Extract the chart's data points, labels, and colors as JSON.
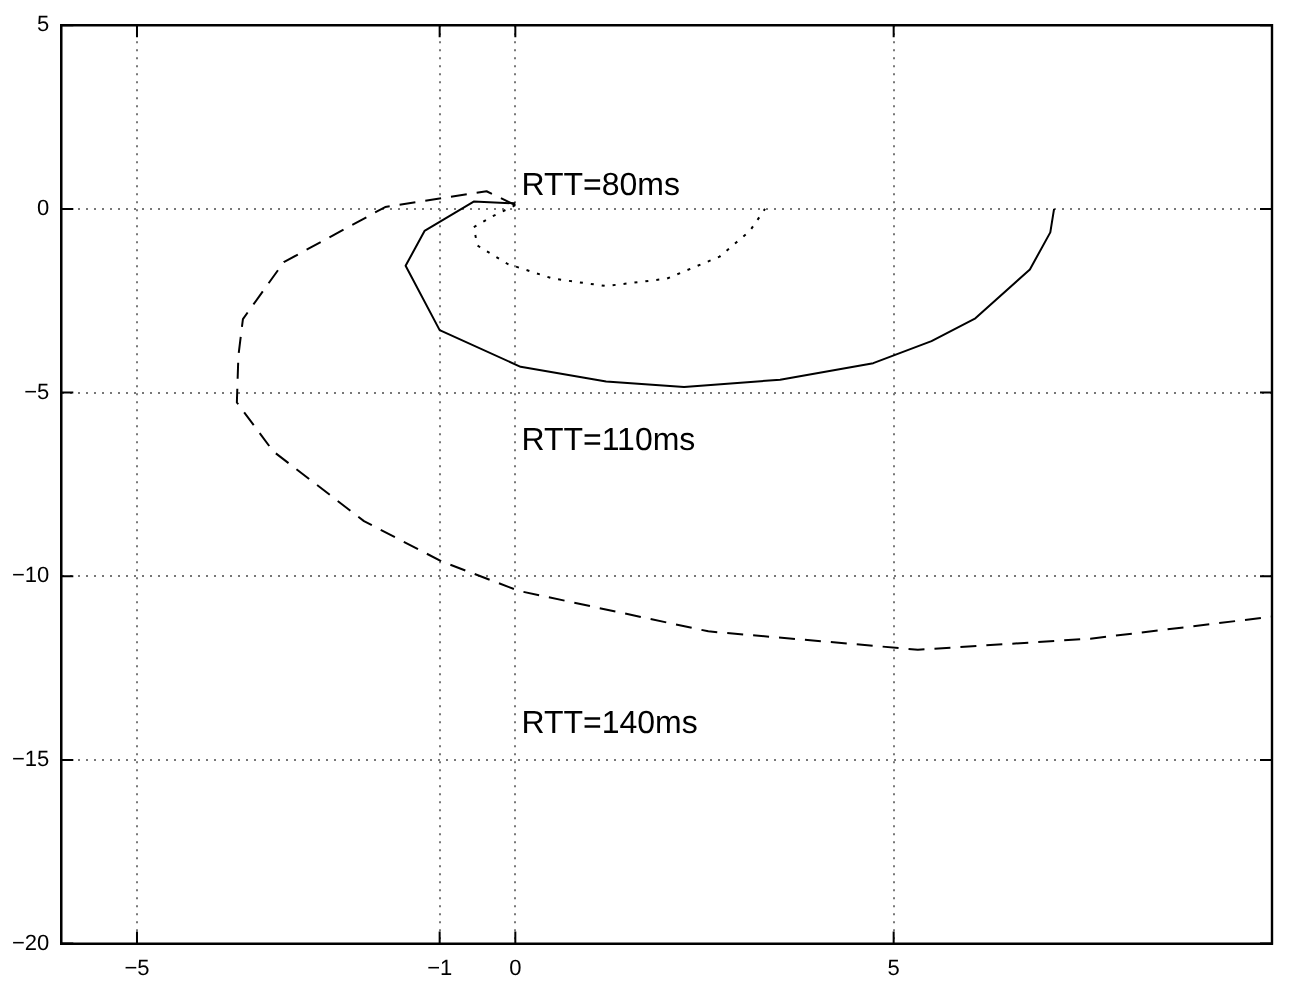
{
  "chart_data": {
    "type": "line",
    "xlim": [
      -6,
      10
    ],
    "xticks": [
      -5,
      -1,
      0,
      5
    ],
    "ylim": [
      -20,
      5
    ],
    "yticks": [
      -20,
      -15,
      -10,
      -5,
      0,
      5
    ],
    "grid": true,
    "marker": "none",
    "series": [
      {
        "name": "RTT=80ms",
        "color": "#000000",
        "line_style": "dotted",
        "x": [
          0,
          -0.3,
          -0.55,
          -0.5,
          -0.1,
          0.5,
          1.2,
          2,
          2.7,
          3.1,
          3.3
        ],
        "values": [
          0.1,
          -0.2,
          -0.5,
          -1.0,
          -1.5,
          -1.9,
          -2.1,
          -1.9,
          -1.3,
          -0.6,
          0
        ]
      },
      {
        "name": "RTT=110ms",
        "color": "#000000",
        "line_style": "solid",
        "x": [
          0,
          -0.55,
          -1.2,
          -1.45,
          -1,
          0.07,
          1.2,
          2.23,
          3.5,
          4.73,
          5.5,
          6.08,
          6.8,
          7.07,
          7.12
        ],
        "values": [
          0.15,
          0.2,
          -0.6,
          -1.55,
          -3.3,
          -4.3,
          -4.7,
          -4.85,
          -4.65,
          -4.2,
          -3.6,
          -2.98,
          -1.65,
          -0.64,
          0
        ]
      },
      {
        "name": "RTT=140ms",
        "color": "#000000",
        "line_style": "dashed",
        "x": [
          0,
          -0.38,
          -1.72,
          -3.06,
          -3.6,
          -3.66,
          -3.68,
          -3.2,
          -2,
          -0.97,
          0.05,
          2.55,
          5.32,
          7.6,
          10
        ],
        "values": [
          0.1,
          0.48,
          0.05,
          -1.45,
          -3,
          -4,
          -5.27,
          -6.6,
          -8.5,
          -9.6,
          -10.4,
          -11.5,
          -12,
          -11.7,
          -11.1
        ]
      }
    ]
  }
}
